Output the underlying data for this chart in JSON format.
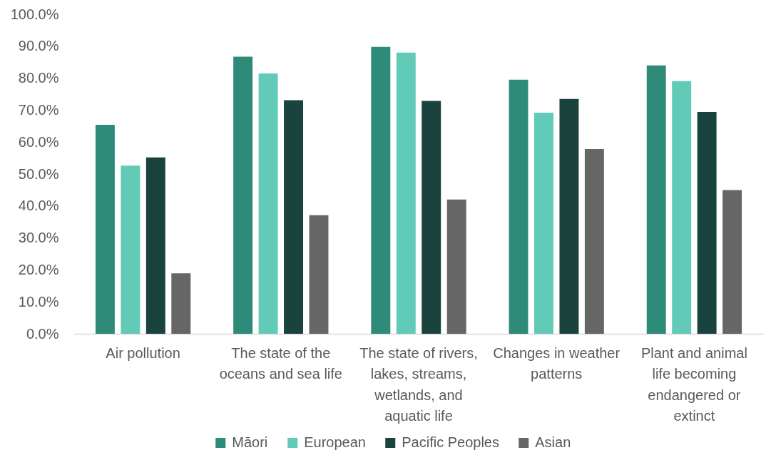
{
  "chart_data": {
    "type": "bar",
    "categories": [
      "Air pollution",
      "The state of the oceans and sea life",
      "The state of rivers, lakes, streams, wetlands, and aquatic life",
      "Changes in weather patterns",
      "Plant and animal life becoming endangered or extinct"
    ],
    "series": [
      {
        "name": "Māori",
        "color": "#2e8b7a",
        "values": [
          65.4,
          86.7,
          89.8,
          79.5,
          84.0
        ]
      },
      {
        "name": "European",
        "color": "#62cbb8",
        "values": [
          52.6,
          81.5,
          88.0,
          69.2,
          79.1
        ]
      },
      {
        "name": "Pacific Peoples",
        "color": "#1a433e",
        "values": [
          55.2,
          73.1,
          72.9,
          73.5,
          69.4
        ]
      },
      {
        "name": "Asian",
        "color": "#666666",
        "values": [
          18.9,
          37.1,
          42.0,
          57.8,
          45.0
        ]
      }
    ],
    "ylim": [
      0,
      100
    ],
    "yticks": [
      {
        "value": 0,
        "label": "0.0%"
      },
      {
        "value": 10,
        "label": "10.0%"
      },
      {
        "value": 20,
        "label": "20.0%"
      },
      {
        "value": 30,
        "label": "30.0%"
      },
      {
        "value": 40,
        "label": "40.0%"
      },
      {
        "value": 50,
        "label": "50.0%"
      },
      {
        "value": 60,
        "label": "60.0%"
      },
      {
        "value": 70,
        "label": "70.0%"
      },
      {
        "value": 80,
        "label": "80.0%"
      },
      {
        "value": 90,
        "label": "90.0%"
      },
      {
        "value": 100,
        "label": "100.0%"
      }
    ],
    "legend": "bottom"
  }
}
